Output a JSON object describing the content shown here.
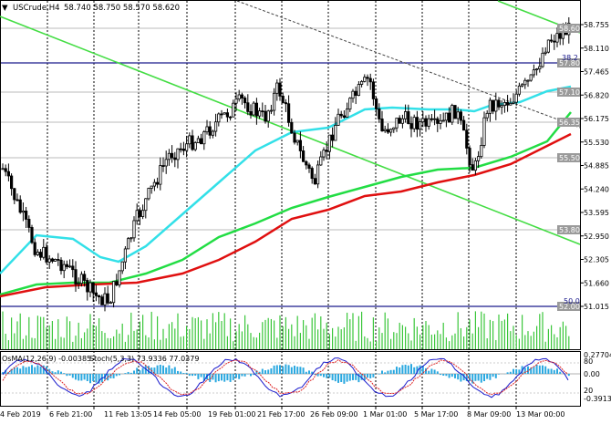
{
  "header": {
    "symbol_timeframe": "USCrude,H4",
    "ohlc": "58.740 58.750 58.570 58.620"
  },
  "price_axis": {
    "labels": [
      "58.755",
      "58.110",
      "57.465",
      "56.820",
      "56.175",
      "55.530",
      "54.885",
      "54.240",
      "53.595",
      "52.950",
      "52.305",
      "51.660",
      "51.015"
    ],
    "level_tags": [
      {
        "text": "58.60",
        "color": "#ffffff",
        "bg": "#9a9a9a"
      },
      {
        "text": "57.80",
        "color": "#ffffff",
        "bg": "#9a9a9a"
      },
      {
        "text": "57.10",
        "color": "#ffffff",
        "bg": "#9a9a9a"
      },
      {
        "text": "56.35",
        "color": "#ffffff",
        "bg": "#9a9a9a"
      },
      {
        "text": "55.50",
        "color": "#ffffff",
        "bg": "#9a9a9a"
      },
      {
        "text": "53.80",
        "color": "#ffffff",
        "bg": "#9a9a9a"
      },
      {
        "text": "52.00",
        "color": "#ffffff",
        "bg": "#9a9a9a"
      }
    ],
    "fib_38": "38.2",
    "fib_50": "50.0"
  },
  "time_axis": {
    "labels": [
      "4 Feb 2019",
      "6 Feb 21:00",
      "11 Feb 13:05",
      "14 Feb 05:00",
      "19 Feb 01:00",
      "21 Feb 17:00",
      "26 Feb 09:00",
      "1 Mar 01:00",
      "5 Mar 17:00",
      "8 Mar 09:00",
      "13 Mar 00:00"
    ]
  },
  "indicator": {
    "osma_label": "OsMA(12,26,9) -0.00385",
    "stoch_label": "Stoch(5,3,3) 73.9336 77.0379",
    "axis_labels": [
      "0.277045",
      "80",
      "0.00",
      "20",
      "-0.391314"
    ]
  },
  "colors": {
    "candles": "#000000",
    "ema_short": "#33e0e8",
    "ema_mid": "#22dd44",
    "ema_long": "#e01010",
    "trend_line": "#44dd44",
    "horizontal_levels": "#1a1a8c",
    "osma_bars": "#2aa8e0",
    "stoch_main": "#1a1acc",
    "stoch_signal": "#dd2222",
    "volume_bars": "#3ac63a"
  }
}
